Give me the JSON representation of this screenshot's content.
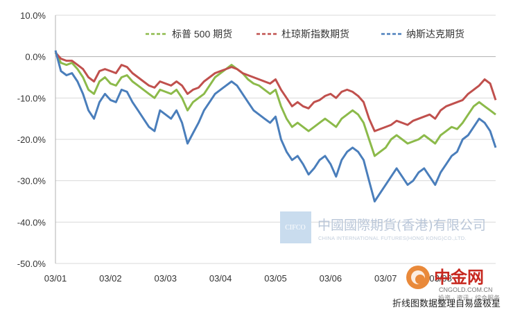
{
  "chart_data": {
    "type": "line",
    "ylim": [
      -50,
      10
    ],
    "yticks": [
      10,
      0,
      -10,
      -20,
      -30,
      -40,
      -50
    ],
    "ytick_labels": [
      "10.0%",
      "0.0%",
      "-10.0%",
      "-20.0%",
      "-30.0%",
      "-40.0%",
      "-50.0%"
    ],
    "x_tick_labels": [
      "03/01",
      "03/02",
      "03/03",
      "03/04",
      "03/05",
      "03/06",
      "03/07",
      "03/08"
    ],
    "grid": true,
    "legend_position": "top-right",
    "series": [
      {
        "name": "标普 500 期货",
        "color": "#8cba4a",
        "dash": "dashed",
        "values": [
          1.0,
          -1.5,
          -2.0,
          -1.5,
          -3.0,
          -5.0,
          -8.0,
          -9.0,
          -6.0,
          -5.0,
          -6.5,
          -7.0,
          -5.0,
          -4.5,
          -6.0,
          -7.0,
          -8.0,
          -9.0,
          -10.0,
          -8.0,
          -8.5,
          -9.0,
          -8.0,
          -10.0,
          -13.0,
          -11.0,
          -10.0,
          -9.0,
          -7.0,
          -5.0,
          -4.0,
          -3.0,
          -2.0,
          -3.0,
          -4.0,
          -5.5,
          -6.5,
          -7.0,
          -8.0,
          -9.0,
          -8.0,
          -12.0,
          -15.0,
          -17.0,
          -16.0,
          -17.0,
          -18.0,
          -17.0,
          -16.0,
          -15.0,
          -16.0,
          -17.0,
          -15.0,
          -14.0,
          -13.0,
          -14.0,
          -16.0,
          -20.0,
          -24.0,
          -23.0,
          -22.0,
          -20.0,
          -19.0,
          -20.0,
          -21.0,
          -20.5,
          -20.0,
          -19.0,
          -20.0,
          -21.0,
          -19.0,
          -18.0,
          -17.0,
          -17.5,
          -16.0,
          -14.0,
          -12.0,
          -11.0,
          -12.0,
          -13.0,
          -14.0
        ]
      },
      {
        "name": "杜琼斯指数期货",
        "color": "#c0504d",
        "dash": "dashed",
        "values": [
          1.0,
          -0.5,
          -1.0,
          -1.0,
          -2.0,
          -3.0,
          -5.0,
          -6.0,
          -3.5,
          -3.0,
          -3.5,
          -4.0,
          -2.0,
          -2.5,
          -4.0,
          -5.0,
          -6.0,
          -7.0,
          -7.5,
          -6.0,
          -6.5,
          -7.0,
          -6.0,
          -7.0,
          -9.0,
          -8.0,
          -7.5,
          -6.0,
          -5.0,
          -4.0,
          -3.5,
          -3.0,
          -2.5,
          -3.0,
          -4.0,
          -4.5,
          -5.0,
          -5.5,
          -6.0,
          -6.5,
          -5.5,
          -8.0,
          -10.0,
          -12.0,
          -11.0,
          -12.0,
          -12.5,
          -11.0,
          -10.5,
          -9.5,
          -9.0,
          -10.0,
          -8.5,
          -8.0,
          -8.5,
          -9.5,
          -11.0,
          -15.0,
          -18.0,
          -17.5,
          -17.0,
          -16.5,
          -15.5,
          -16.0,
          -16.5,
          -15.5,
          -15.0,
          -14.5,
          -14.0,
          -15.0,
          -13.0,
          -12.0,
          -11.5,
          -11.0,
          -10.5,
          -9.0,
          -8.0,
          -7.0,
          -5.5,
          -6.5,
          -10.5
        ]
      },
      {
        "name": "纳斯达克期货",
        "color": "#4a7ebb",
        "dash": "dashed",
        "values": [
          1.5,
          -3.5,
          -4.5,
          -4.0,
          -6.0,
          -9.0,
          -13.0,
          -15.0,
          -11.0,
          -9.0,
          -10.5,
          -11.0,
          -8.0,
          -8.5,
          -11.0,
          -13.0,
          -15.0,
          -17.0,
          -18.0,
          -13.0,
          -14.0,
          -15.0,
          -13.0,
          -16.0,
          -21.0,
          -18.5,
          -16.0,
          -13.0,
          -11.0,
          -9.0,
          -8.0,
          -7.0,
          -6.0,
          -7.0,
          -9.0,
          -11.0,
          -13.0,
          -14.0,
          -15.0,
          -16.0,
          -14.5,
          -20.0,
          -23.0,
          -25.0,
          -24.0,
          -26.0,
          -28.5,
          -27.0,
          -25.0,
          -24.0,
          -26.0,
          -29.0,
          -25.0,
          -23.0,
          -22.0,
          -23.0,
          -25.0,
          -30.0,
          -35.0,
          -33.0,
          -31.0,
          -29.0,
          -27.0,
          -29.0,
          -31.0,
          -30.0,
          -28.0,
          -27.0,
          -29.0,
          -31.0,
          -28.0,
          -26.0,
          -24.0,
          -23.0,
          -20.0,
          -19.0,
          -17.0,
          -15.0,
          -16.0,
          -18.0,
          -22.0
        ]
      }
    ]
  },
  "watermark": {
    "box_text": "CIFCO",
    "chinese": "中國國際期貨(香港)有限公司",
    "english": "CHINA INTERNATIONAL FUTURES(HONG KONG)CO.,LTD."
  },
  "logo": {
    "name": "中金网",
    "site": "CNGOLD.COM.CN",
    "tagline": "投资 · 资讯 · 综合服务"
  },
  "caption": "折线图数据整理自易盛极星"
}
